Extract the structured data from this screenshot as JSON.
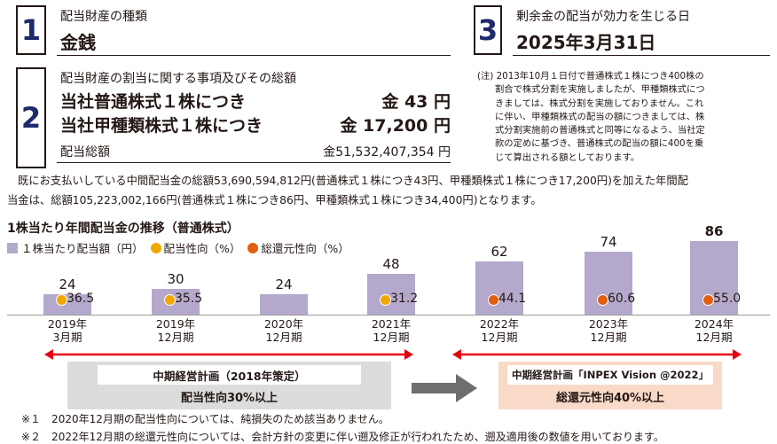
{
  "sec1": {
    "num": "1",
    "label": "配当財産の種類",
    "value": "金銭"
  },
  "sec2": {
    "num": "2",
    "label": "配当財産の割当に関する事項及びその総額",
    "row1_label": "当社普通株式１株につき",
    "row1_value": "金 43 円",
    "row2_label": "当社甲種類株式１株につき",
    "row2_value": "金 17,200 円",
    "total_label": "配当総額",
    "total_value": "金51,532,407,354 円"
  },
  "sec3": {
    "num": "3",
    "label": "剰余金の配当が効力を生じる日",
    "value": "2025年3月31日"
  },
  "note_block": {
    "line1": "(注) 2013年10月１日付で普通株式１株につき400株の",
    "line2": "割合で株式分割を実施しましたが、甲種類株式につ",
    "line3": "きましては、株式分割を実施しておりません。これ",
    "line4": "に伴い、甲種類株式の配当の額につきましては、株",
    "line5": "式分割実施前の普通株式と同等になるよう、当社定",
    "line6": "款の定めに基づき、普通株式の配当の額に400を乗",
    "line7": "じて算出される額としております。"
  },
  "paragraph": {
    "line1": "既にお支払いしている中間配当金の総額53,690,594,812円(普通株式１株につき43円、甲種類株式１株につき17,200円)を加えた年間配",
    "line2": "当金は、総額105,223,002,166円(普通株式１株につき86円、甲種類株式１株につき34,400円)となります。"
  },
  "chart_title": "1株当たり年間配当金の推移（普通株式）",
  "legend": {
    "bar": "１株当たり配当額（円）",
    "payout": "配当性向（%）",
    "total_return": "総還元性向（%）"
  },
  "colors": {
    "bar": "#b4a9cc",
    "payout": "#f0a800",
    "total_return": "#e06010",
    "arrow": "#e60012",
    "plan1_bg": "#dcdcdc",
    "plan2_bg": "#f9d9c7"
  },
  "chart_data": {
    "type": "bar",
    "title": "1株当たり年間配当金の推移（普通株式）",
    "categories": [
      {
        "line1": "2019年",
        "line2": "3月期"
      },
      {
        "line1": "2019年",
        "line2": "12月期"
      },
      {
        "line1": "2020年",
        "line2": "12月期"
      },
      {
        "line1": "2021年",
        "line2": "12月期"
      },
      {
        "line1": "2022年",
        "line2": "12月期"
      },
      {
        "line1": "2023年",
        "line2": "12月期"
      },
      {
        "line1": "2024年",
        "line2": "12月期"
      }
    ],
    "series": [
      {
        "name": "１株当たり配当額（円）",
        "values": [
          24,
          30,
          24,
          48,
          62,
          74,
          86
        ],
        "labels": [
          "24",
          "30",
          "24",
          "48",
          "62",
          "74",
          "86"
        ]
      },
      {
        "name": "配当性向（%）",
        "values": [
          36.5,
          35.5,
          null,
          31.2,
          null,
          null,
          null
        ],
        "labels": [
          "36.5",
          "35.5",
          "",
          "31.2",
          "",
          "",
          ""
        ]
      },
      {
        "name": "総還元性向（%）",
        "values": [
          null,
          null,
          null,
          null,
          44.1,
          60.6,
          55.0
        ],
        "labels": [
          "",
          "",
          "",
          "",
          "44.1",
          "60.6",
          "55.0"
        ]
      }
    ],
    "ylim": [
      0,
      86
    ]
  },
  "plan1": {
    "line1": "中期経営計画（2018年策定）",
    "line2": "配当性向30%以上"
  },
  "plan2": {
    "line1": "中期経営計画「INPEX Vision @2022」",
    "line2": "総還元性向40%以上"
  },
  "footnotes": {
    "f1": "※１　2020年12月期の配当性向については、純損失のため該当ありません。",
    "f2": "※２　2022年12月期の総還元性向については、会計方針の変更に伴い遡及修正が行われたため、遡及適用後の数値を用いております。"
  }
}
